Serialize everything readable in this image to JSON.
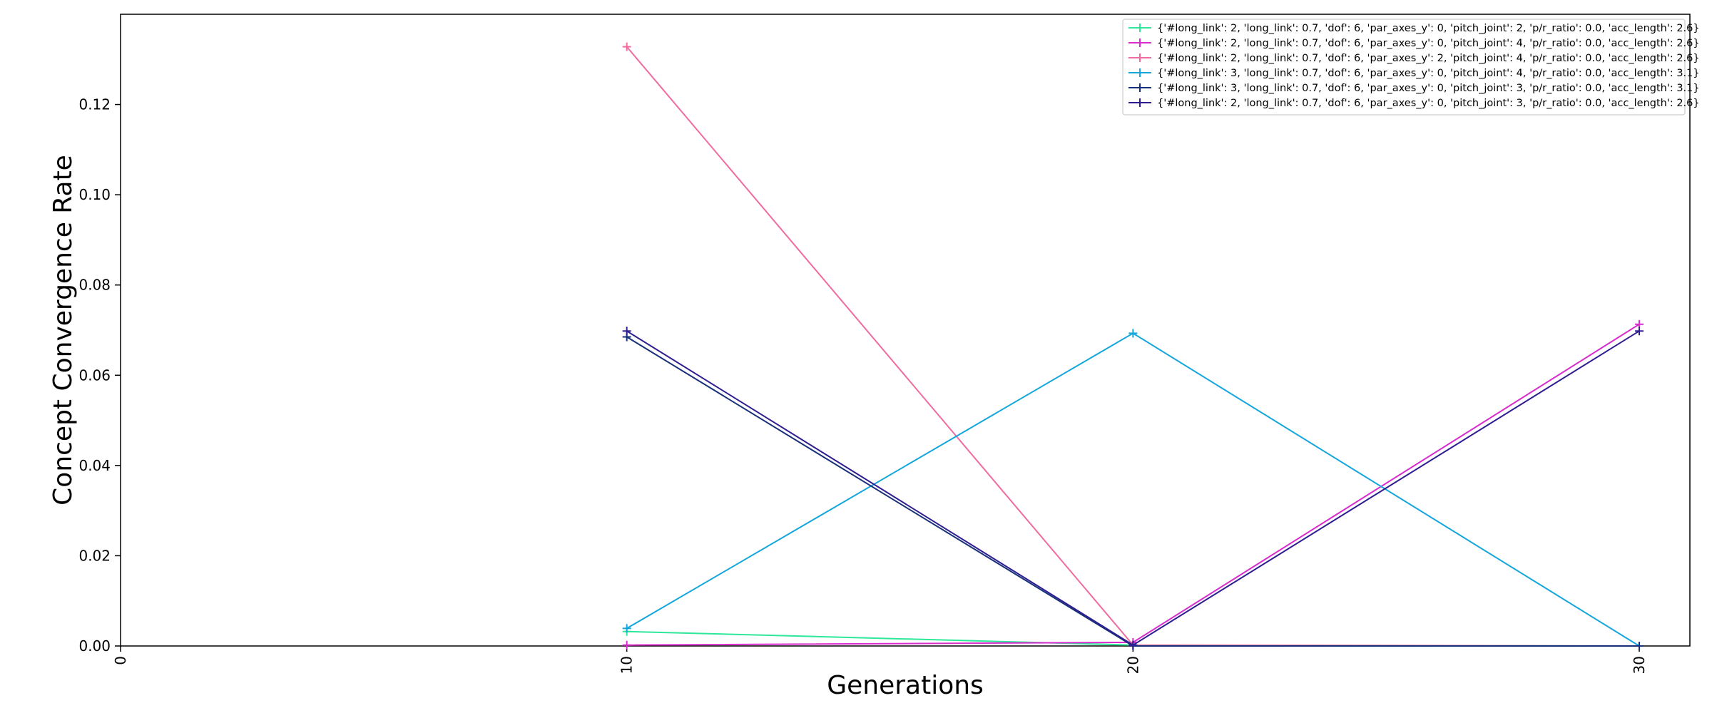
{
  "chart_data": {
    "type": "line",
    "xlabel": "Generations",
    "ylabel": "Concept Convergence Rate",
    "xlim": [
      0,
      31
    ],
    "ylim": [
      0,
      0.14
    ],
    "xticks": [
      0,
      10,
      20,
      30
    ],
    "yticks": [
      0.0,
      0.02,
      0.04,
      0.06,
      0.08,
      0.1,
      0.12
    ],
    "legend_position": "upper right",
    "marker": "+",
    "series": [
      {
        "name": "{'#long_link': 2, 'long_link': 0.7, 'dof': 6, 'par_axes_y': 0, 'pitch_joint': 2, 'p/r_ratio': 0.0, 'acc_length': 2.6}",
        "color": "#2ee89a",
        "x": [
          10,
          20,
          30
        ],
        "y": [
          0.0032,
          0.0002,
          0.0
        ]
      },
      {
        "name": "{'#long_link': 2, 'long_link': 0.7, 'dof': 6, 'par_axes_y': 0, 'pitch_joint': 4, 'p/r_ratio': 0.0, 'acc_length': 2.6}",
        "color": "#d82ccc",
        "x": [
          10,
          20,
          30
        ],
        "y": [
          0.0002,
          0.0008,
          0.0713
        ]
      },
      {
        "name": "{'#long_link': 2, 'long_link': 0.7, 'dof': 6, 'par_axes_y': 2, 'pitch_joint': 4, 'p/r_ratio': 0.0, 'acc_length': 2.6}",
        "color": "#f06ba0",
        "x": [
          10,
          20,
          30
        ],
        "y": [
          0.1328,
          0.0002,
          0.0
        ]
      },
      {
        "name": "{'#long_link': 3, 'long_link': 0.7, 'dof': 6, 'par_axes_y': 0, 'pitch_joint': 4, 'p/r_ratio': 0.0, 'acc_length': 3.1}",
        "color": "#15a6dc",
        "x": [
          10,
          20,
          30
        ],
        "y": [
          0.0039,
          0.0693,
          0.0
        ]
      },
      {
        "name": "{'#long_link': 3, 'long_link': 0.7, 'dof': 6, 'par_axes_y': 0, 'pitch_joint': 3, 'p/r_ratio': 0.0, 'acc_length': 3.1}",
        "color": "#17307a",
        "x": [
          10,
          20,
          30
        ],
        "y": [
          0.0685,
          0.0,
          0.0
        ]
      },
      {
        "name": "{'#long_link': 2, 'long_link': 0.7, 'dof': 6, 'par_axes_y': 0, 'pitch_joint': 3, 'p/r_ratio': 0.0, 'acc_length': 2.6}",
        "color": "#2e1d90",
        "x": [
          10,
          20,
          30
        ],
        "y": [
          0.0698,
          0.0002,
          0.0698
        ]
      }
    ]
  }
}
